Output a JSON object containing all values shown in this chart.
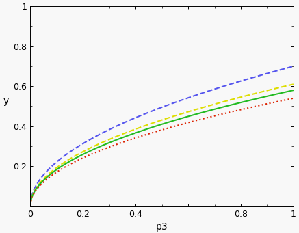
{
  "xlabel": "p3",
  "ylabel": "y",
  "xlim": [
    0,
    1
  ],
  "ylim": [
    0,
    1
  ],
  "xticks": [
    0,
    0.2,
    0.4,
    0.6,
    0.8,
    1.0
  ],
  "yticks": [
    0,
    0.2,
    0.4,
    0.6,
    0.8,
    1.0
  ],
  "xticklabels": [
    "0",
    "0.2",
    "0.4",
    "",
    "0.8",
    "1"
  ],
  "yticklabels": [
    "",
    "0.2",
    "0.4",
    "0.6",
    "0.8",
    "1"
  ],
  "curves": [
    {
      "q": 0.0,
      "color": "#5555ee",
      "linestyle": "--",
      "linewidth": 1.5,
      "scale": 0.7
    },
    {
      "q": 0.1,
      "color": "#dddd00",
      "linestyle": "--",
      "linewidth": 1.5,
      "scale": 0.61
    },
    {
      "q": 0.2,
      "color": "#22bb22",
      "linestyle": "-",
      "linewidth": 1.5,
      "scale": 0.58
    },
    {
      "q": 0.5,
      "color": "#dd2200",
      "linestyle": ":",
      "linewidth": 1.5,
      "scale": 0.54
    }
  ],
  "exponent": 0.5,
  "background_color": "#f8f8f8",
  "n_points": 500,
  "figsize": [
    4.37,
    3.41
  ],
  "dpi": 100
}
